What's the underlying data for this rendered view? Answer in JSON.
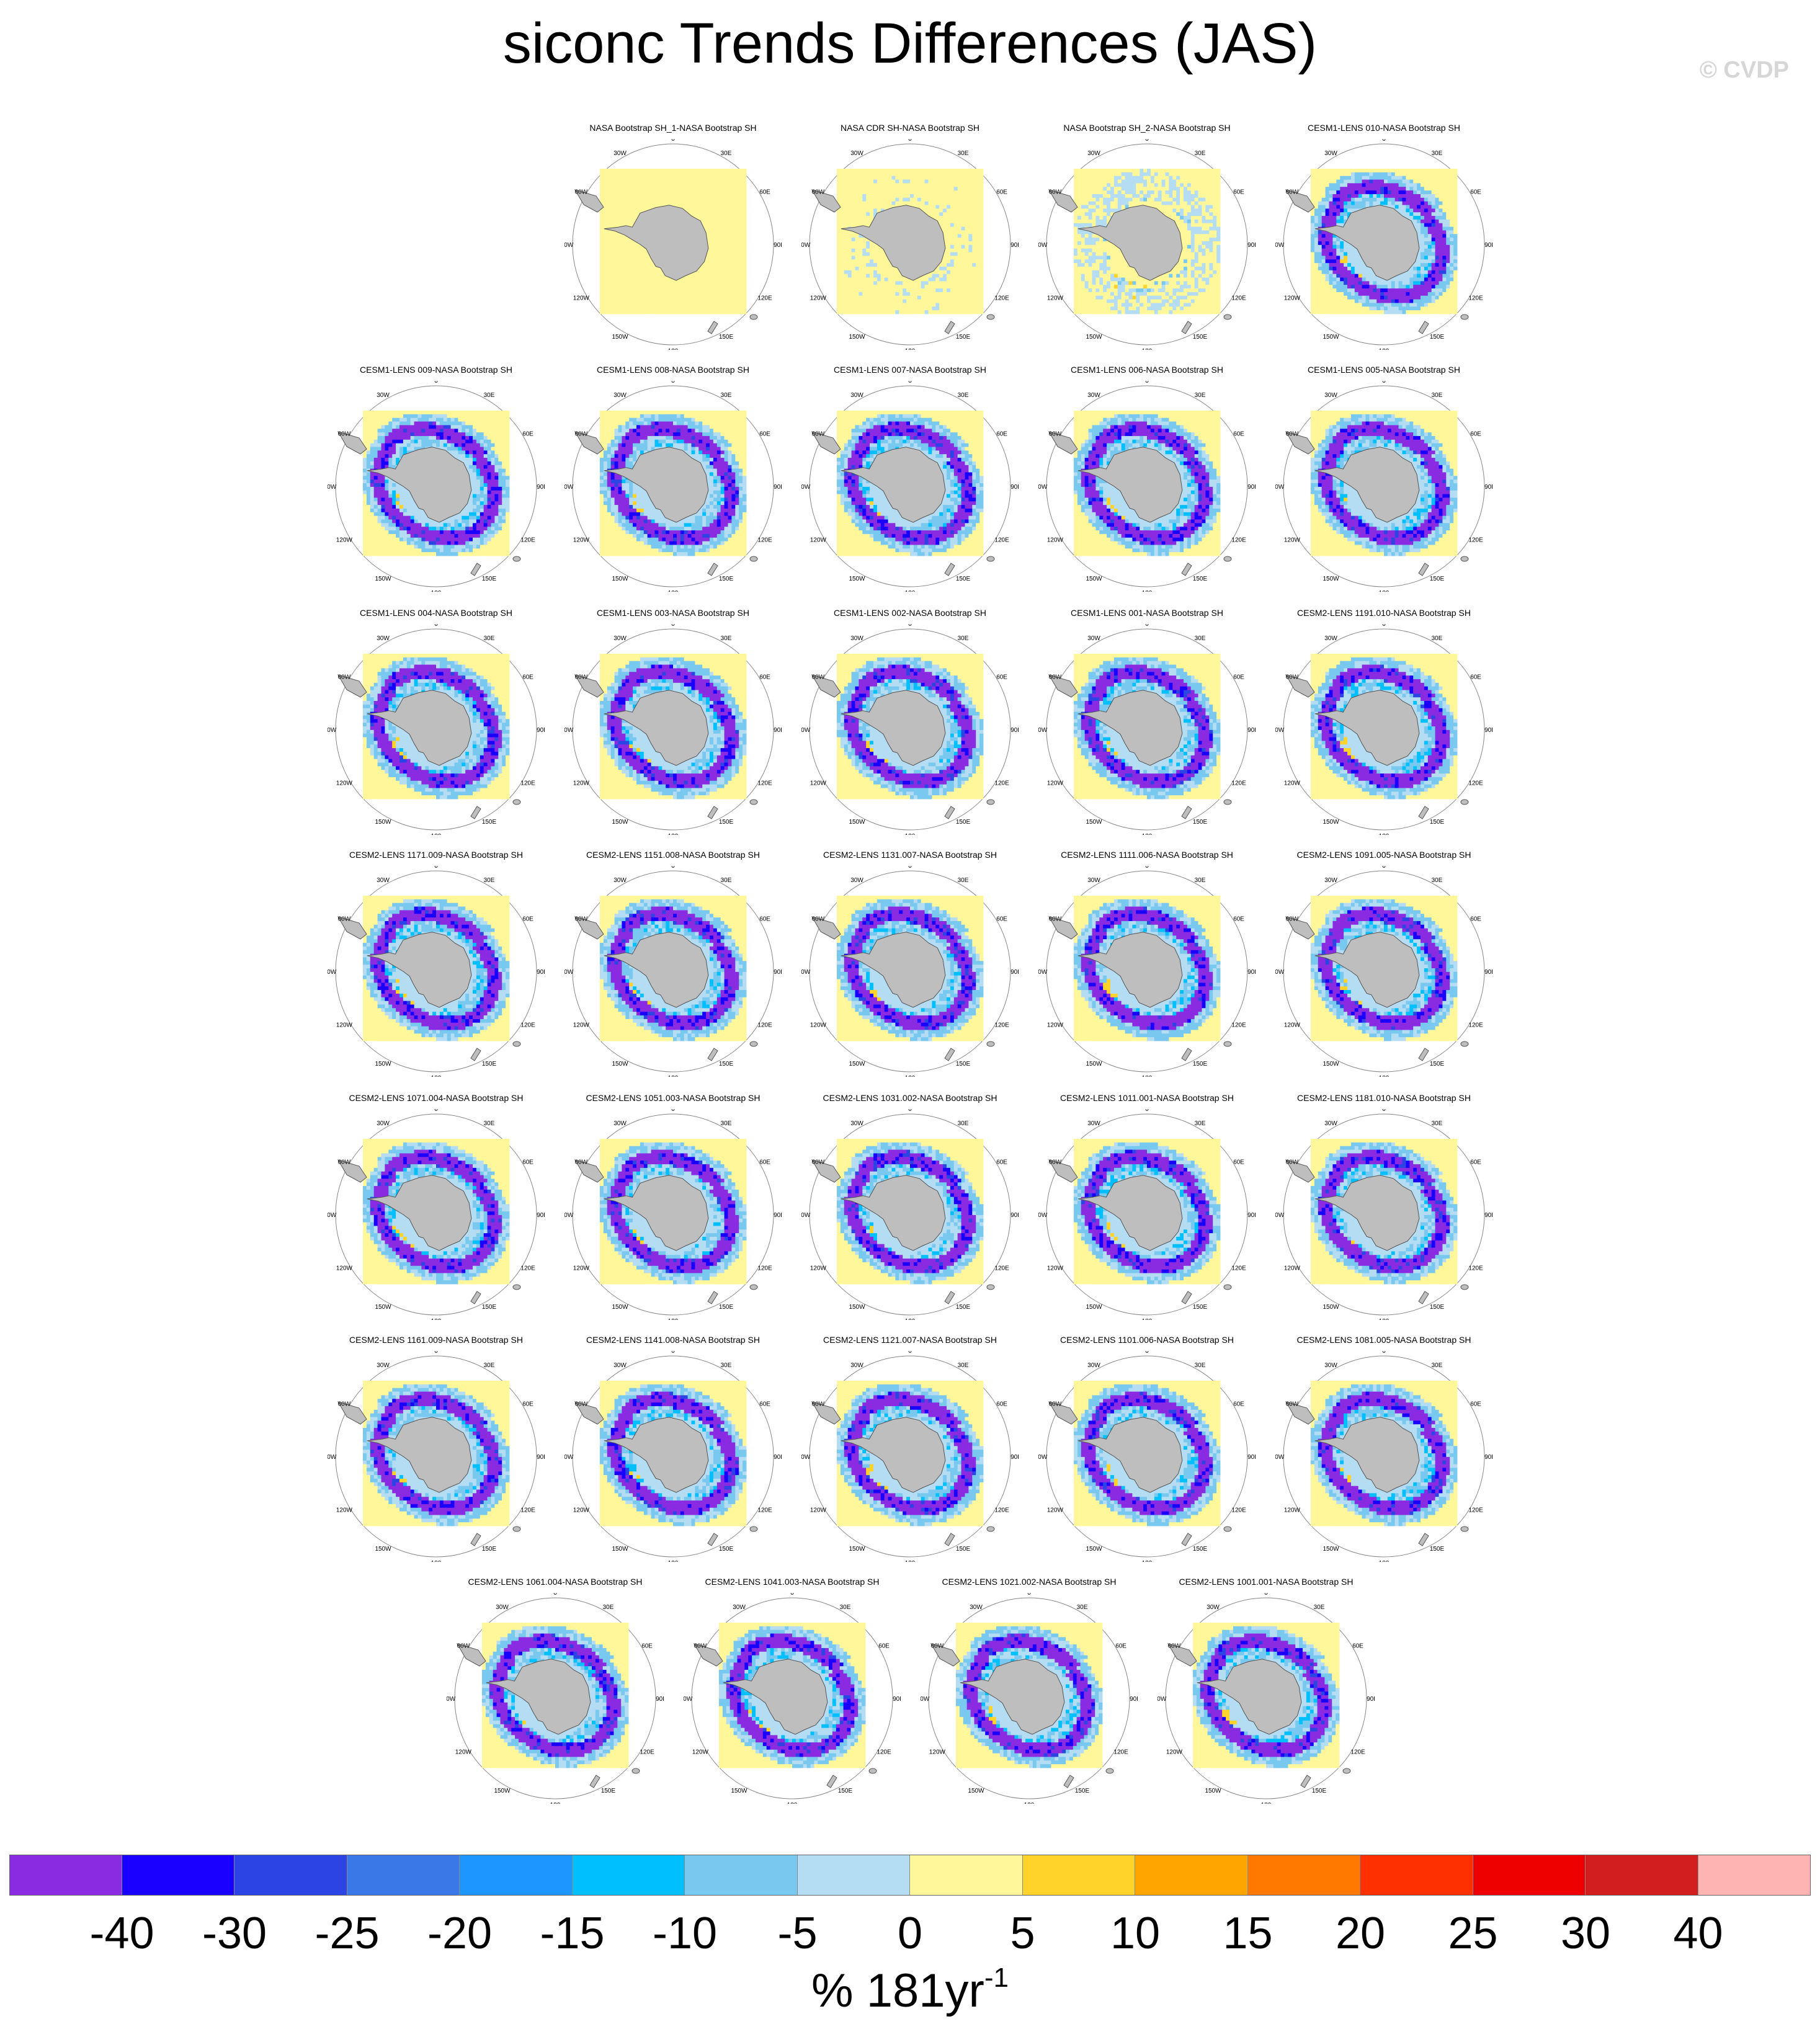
{
  "chart_data": {
    "type": "heatmap",
    "title": "siconc Trends Differences (JAS)",
    "projection": "south-polar-stereographic",
    "panels": [
      {
        "title": "NASA Bootstrap SH_1-NASA Bootstrap SH",
        "pattern": "zero"
      },
      {
        "title": "NASA CDR SH-NASA Bootstrap SH",
        "pattern": "cdr"
      },
      {
        "title": "NASA Bootstrap SH_2-NASA Bootstrap SH",
        "pattern": "bs2"
      },
      {
        "title": "CESM1-LENS 010-NASA Bootstrap SH",
        "pattern": "lens"
      },
      {
        "title": "CESM1-LENS 009-NASA Bootstrap SH",
        "pattern": "lens"
      },
      {
        "title": "CESM1-LENS 008-NASA Bootstrap SH",
        "pattern": "lens"
      },
      {
        "title": "CESM1-LENS 007-NASA Bootstrap SH",
        "pattern": "lens"
      },
      {
        "title": "CESM1-LENS 006-NASA Bootstrap SH",
        "pattern": "lens"
      },
      {
        "title": "CESM1-LENS 005-NASA Bootstrap SH",
        "pattern": "lens"
      },
      {
        "title": "CESM1-LENS 004-NASA Bootstrap SH",
        "pattern": "lens"
      },
      {
        "title": "CESM1-LENS 003-NASA Bootstrap SH",
        "pattern": "lens"
      },
      {
        "title": "CESM1-LENS 002-NASA Bootstrap SH",
        "pattern": "lens"
      },
      {
        "title": "CESM1-LENS 001-NASA Bootstrap SH",
        "pattern": "lens"
      },
      {
        "title": "CESM2-LENS 1191.010-NASA Bootstrap SH",
        "pattern": "lens"
      },
      {
        "title": "CESM2-LENS 1171.009-NASA Bootstrap SH",
        "pattern": "lens"
      },
      {
        "title": "CESM2-LENS 1151.008-NASA Bootstrap SH",
        "pattern": "lens"
      },
      {
        "title": "CESM2-LENS 1131.007-NASA Bootstrap SH",
        "pattern": "lens"
      },
      {
        "title": "CESM2-LENS 1111.006-NASA Bootstrap SH",
        "pattern": "lens"
      },
      {
        "title": "CESM2-LENS 1091.005-NASA Bootstrap SH",
        "pattern": "lens"
      },
      {
        "title": "CESM2-LENS 1071.004-NASA Bootstrap SH",
        "pattern": "lens"
      },
      {
        "title": "CESM2-LENS 1051.003-NASA Bootstrap SH",
        "pattern": "lens"
      },
      {
        "title": "CESM2-LENS 1031.002-NASA Bootstrap SH",
        "pattern": "lens"
      },
      {
        "title": "CESM2-LENS 1011.001-NASA Bootstrap SH",
        "pattern": "lens"
      },
      {
        "title": "CESM2-LENS 1181.010-NASA Bootstrap SH",
        "pattern": "lens"
      },
      {
        "title": "CESM2-LENS 1161.009-NASA Bootstrap SH",
        "pattern": "lens"
      },
      {
        "title": "CESM2-LENS 1141.008-NASA Bootstrap SH",
        "pattern": "lens"
      },
      {
        "title": "CESM2-LENS 1121.007-NASA Bootstrap SH",
        "pattern": "lens"
      },
      {
        "title": "CESM2-LENS 1101.006-NASA Bootstrap SH",
        "pattern": "lens"
      },
      {
        "title": "CESM2-LENS 1081.005-NASA Bootstrap SH",
        "pattern": "lens"
      },
      {
        "title": "CESM2-LENS 1061.004-NASA Bootstrap SH",
        "pattern": "lens"
      },
      {
        "title": "CESM2-LENS 1041.003-NASA Bootstrap SH",
        "pattern": "lens"
      },
      {
        "title": "CESM2-LENS 1021.002-NASA Bootstrap SH",
        "pattern": "lens"
      },
      {
        "title": "CESM2-LENS 1001.001-NASA Bootstrap SH",
        "pattern": "lens"
      }
    ],
    "longitude_labels": [
      "0",
      "30E",
      "60E",
      "90E",
      "120E",
      "150E",
      "180",
      "150W",
      "120W",
      "90W",
      "60W",
      "30W"
    ],
    "colorbar": {
      "tick_labels": [
        "-40",
        "-30",
        "-25",
        "-20",
        "-15",
        "-10",
        "-5",
        "0",
        "5",
        "10",
        "15",
        "20",
        "25",
        "30",
        "40"
      ],
      "colors": [
        "#8a2be2",
        "#1a00ff",
        "#2c44e4",
        "#3a78e8",
        "#1e96ff",
        "#00bfff",
        "#78c8f0",
        "#b4dcf2",
        "#fff799",
        "#ffd32a",
        "#ffa500",
        "#ff7800",
        "#ff3000",
        "#ee0000",
        "#d21e1e",
        "#ffb4b4"
      ],
      "units_main": "% 181yr",
      "units_exponent": "-1"
    }
  },
  "watermark": "© CVDP",
  "map_colors": {
    "land": "#bebebe",
    "land_edge": "#555555",
    "grid": "#888888"
  }
}
